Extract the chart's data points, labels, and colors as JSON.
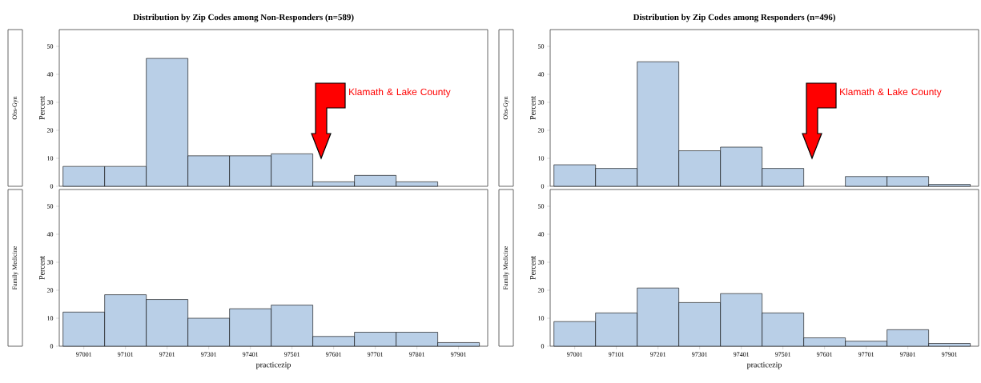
{
  "chart_data": [
    {
      "type": "histogram",
      "title": "Distribution by Zip Codes among Non-Responders (n=589)",
      "subtitle": "Obs-Gyn",
      "ylabel": "Percent",
      "bins": [
        96951,
        97051,
        97151,
        97251,
        97351,
        97451,
        97551,
        97651,
        97751,
        97851,
        97951
      ],
      "values": [
        7.1,
        7.1,
        45.7,
        10.9,
        10.9,
        11.6,
        1.6,
        3.9,
        1.6,
        0
      ],
      "color": "#b9cfe7",
      "xlim": [
        96942,
        97971
      ],
      "ylim": [
        0,
        56
      ],
      "xticks": [
        97001,
        97101,
        97201,
        97301,
        97401,
        97501,
        97601,
        97701,
        97801,
        97901
      ],
      "yticks": [
        0,
        10,
        20,
        30,
        40,
        50
      ],
      "tick_labels": "y",
      "annotations": [
        "Klamath & Lake County"
      ]
    },
    {
      "type": "histogram",
      "subtitle": "Family Medicine",
      "xlabel": "practicezip",
      "ylabel": "Percent",
      "bins": [
        96951,
        97051,
        97151,
        97251,
        97351,
        97451,
        97551,
        97651,
        97751,
        97851,
        97951
      ],
      "values": [
        12.2,
        18.4,
        16.7,
        10.0,
        13.4,
        14.7,
        3.5,
        5.0,
        5.0,
        1.3
      ],
      "color": "#b9cfe7",
      "xlim": [
        96942,
        97971
      ],
      "ylim": [
        0,
        56
      ],
      "xticks": [
        97001,
        97101,
        97201,
        97301,
        97401,
        97501,
        97601,
        97701,
        97801,
        97901
      ],
      "yticks": [
        0,
        10,
        20,
        30,
        40,
        50
      ]
    },
    {
      "type": "histogram",
      "title": "Distribution by Zip Codes among Responders (n=496)",
      "subtitle": "Obs-Gyn",
      "ylabel": "Percent",
      "bins": [
        96951,
        97051,
        97151,
        97251,
        97351,
        97451,
        97551,
        97651,
        97751,
        97851,
        97951
      ],
      "values": [
        7.7,
        6.4,
        44.5,
        12.7,
        14.0,
        6.4,
        0,
        3.5,
        3.5,
        0.7
      ],
      "color": "#b9cfe7",
      "xlim": [
        96942,
        97971
      ],
      "ylim": [
        0,
        56
      ],
      "xticks": [
        97001,
        97101,
        97201,
        97301,
        97401,
        97501,
        97601,
        97701,
        97801,
        97901
      ],
      "yticks": [
        0,
        10,
        20,
        30,
        40,
        50
      ],
      "tick_labels": "y",
      "annotations": [
        "Klamath & Lake County"
      ]
    },
    {
      "type": "histogram",
      "subtitle": "Family Medicine",
      "xlabel": "practicezip",
      "ylabel": "Percent",
      "bins": [
        96951,
        97051,
        97151,
        97251,
        97351,
        97451,
        97551,
        97651,
        97751,
        97851,
        97951
      ],
      "values": [
        8.8,
        11.9,
        20.8,
        15.6,
        18.8,
        11.9,
        3.0,
        1.8,
        5.9,
        1.0
      ],
      "color": "#b9cfe7",
      "xlim": [
        96942,
        97971
      ],
      "ylim": [
        0,
        56
      ],
      "xticks": [
        97001,
        97101,
        97201,
        97301,
        97401,
        97501,
        97601,
        97701,
        97801,
        97901
      ],
      "yticks": [
        0,
        10,
        20,
        30,
        40,
        50
      ]
    }
  ]
}
